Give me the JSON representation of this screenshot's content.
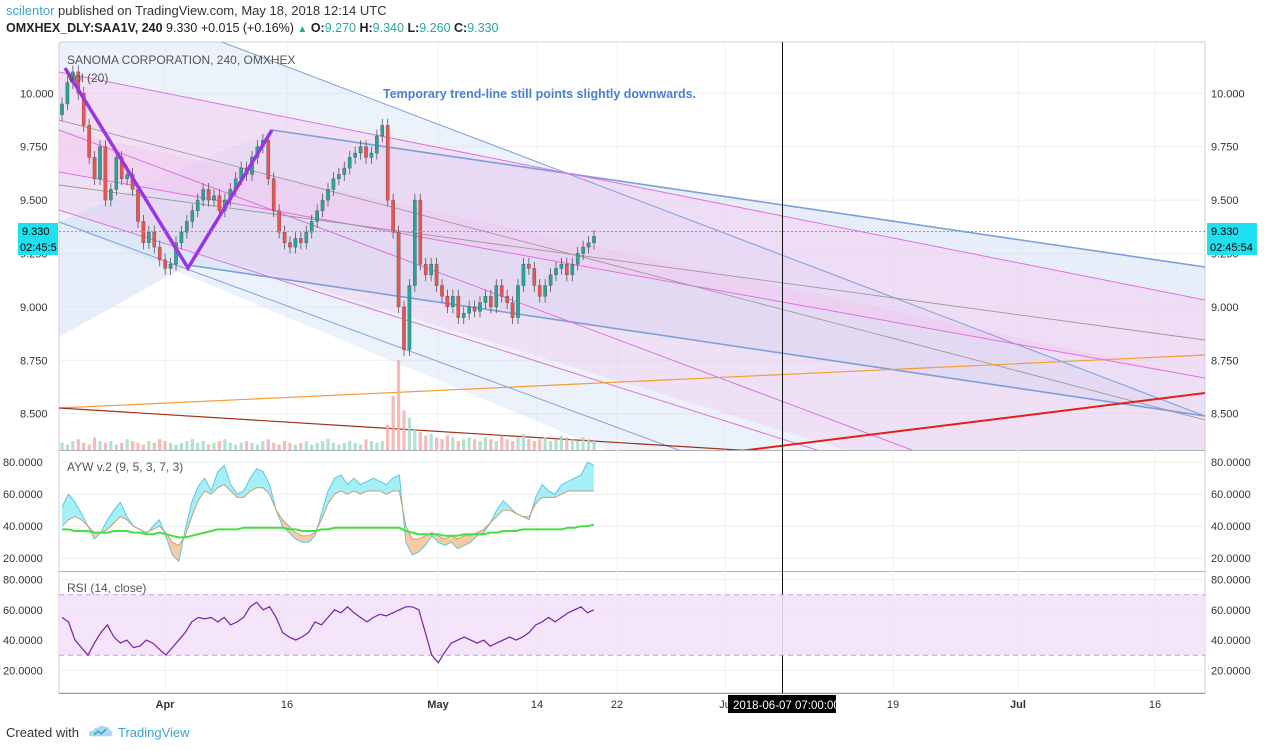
{
  "header": {
    "author": "scilentor",
    "published_text": " published on TradingView.com, May 18, 2018 12:14 UTC",
    "symbol": "OMXHEX_DLY:SAA1V, 240",
    "last": "9.330",
    "change": "+0.015 (+0.16%)",
    "o_label": "O:",
    "o_value": "9.270",
    "h_label": "H:",
    "h_value": "9.340",
    "l_label": "L:",
    "l_value": "9.260",
    "c_label": "C:",
    "c_value": "9.330"
  },
  "main_pane": {
    "title": "SANOMA CORPORATION, 240, OMXHEX",
    "volume_label": "Vol (20)",
    "annotation": "Temporary trend-line still points slightly downwards.",
    "price_badge": "9.330",
    "countdown_left": "02:45:5",
    "countdown_right": "02:45:54",
    "crosshair_date": "2018-06-07 07:00:00"
  },
  "ayw_pane": {
    "label": "AYW v.2 (9, 5, 3, 7, 3)"
  },
  "rsi_pane": {
    "label": "RSI (14, close)"
  },
  "footer": {
    "created_with": "Created with",
    "brand": "TradingView"
  },
  "colors": {
    "accent": "#3ba3d0",
    "up": "#26a69a",
    "down": "#ef5350",
    "pitchfork": "#9c33e5",
    "channel_blue": "#7b9fd9",
    "channel_pink": "#e070e0",
    "orange_line": "#f39c38",
    "red_line": "#e0201c",
    "rsi_line": "#7b1fa2"
  },
  "chart_data": [
    {
      "type": "candlestick",
      "title": "SANOMA CORPORATION, 240, OMXHEX",
      "x_ticks": [
        "Apr",
        "16",
        "May",
        "14",
        "22",
        "Ju",
        "19",
        "Jul",
        "16"
      ],
      "y_ticks": [
        "10.000",
        "9.750",
        "9.500",
        "9.250",
        "9.000",
        "8.750",
        "8.500"
      ],
      "ylim": [
        8.33,
        10.24
      ],
      "last_price": 9.33,
      "closes": [
        9.95,
        10.05,
        10.1,
        10.0,
        9.85,
        9.7,
        9.6,
        9.75,
        9.5,
        9.55,
        9.7,
        9.6,
        9.62,
        9.55,
        9.4,
        9.3,
        9.35,
        9.28,
        9.22,
        9.18,
        9.2,
        9.3,
        9.35,
        9.4,
        9.45,
        9.5,
        9.55,
        9.5,
        9.52,
        9.45,
        9.5,
        9.55,
        9.6,
        9.65,
        9.62,
        9.7,
        9.75,
        9.78,
        9.6,
        9.45,
        9.35,
        9.3,
        9.28,
        9.32,
        9.3,
        9.35,
        9.4,
        9.45,
        9.5,
        9.55,
        9.6,
        9.62,
        9.65,
        9.7,
        9.72,
        9.75,
        9.7,
        9.72,
        9.8,
        9.85,
        9.5,
        9.35,
        9.0,
        8.8,
        9.1,
        9.5,
        9.2,
        9.15,
        9.2,
        9.1,
        9.05,
        9.0,
        9.05,
        8.95,
        8.97,
        9.0,
        8.98,
        9.02,
        9.05,
        9.0,
        9.1,
        9.05,
        9.02,
        8.95,
        9.1,
        9.2,
        9.18,
        9.1,
        9.05,
        9.1,
        9.15,
        9.18,
        9.2,
        9.15,
        9.2,
        9.25,
        9.28,
        9.3,
        9.33
      ],
      "volumes": [
        4,
        3,
        5,
        6,
        4,
        3,
        7,
        5,
        4,
        5,
        3,
        4,
        6,
        5,
        4,
        3,
        5,
        4,
        6,
        5,
        4,
        3,
        4,
        5,
        6,
        4,
        5,
        3,
        4,
        5,
        6,
        4,
        3,
        4,
        5,
        4,
        3,
        5,
        6,
        4,
        3,
        5,
        4,
        3,
        4,
        5,
        3,
        4,
        5,
        6,
        4,
        3,
        4,
        5,
        4,
        3,
        6,
        5,
        4,
        5,
        14,
        30,
        50,
        22,
        18,
        12,
        10,
        8,
        9,
        7,
        6,
        8,
        7,
        5,
        6,
        7,
        6,
        5,
        7,
        6,
        5,
        8,
        6,
        5,
        7,
        9,
        6,
        5,
        6,
        7,
        5,
        6,
        8,
        7,
        6,
        5,
        7,
        6,
        5
      ],
      "indicators": [
        "Vol (20)"
      ]
    },
    {
      "type": "line",
      "title": "AYW v.2 (9, 5, 3, 7, 3)",
      "y_ticks": [
        "80.0000",
        "60.0000",
        "40.0000",
        "20.0000"
      ],
      "ylim": [
        12,
        87
      ],
      "series": [
        {
          "values": [
            52,
            60,
            55,
            48,
            40,
            32,
            36,
            44,
            50,
            55,
            46,
            40,
            38,
            35,
            40,
            44,
            34,
            22,
            18,
            38,
            55,
            65,
            70,
            62,
            74,
            78,
            66,
            60,
            62,
            70,
            76,
            74,
            66,
            50,
            40,
            36,
            32,
            30,
            30,
            34,
            48,
            62,
            70,
            72,
            66,
            70,
            66,
            68,
            70,
            68,
            66,
            70,
            72,
            30,
            22,
            24,
            28,
            34,
            30,
            28,
            30,
            26,
            28,
            30,
            34,
            36,
            42,
            50,
            56,
            52,
            48,
            46,
            44,
            58,
            66,
            62,
            60,
            66,
            68,
            70,
            72,
            80,
            78
          ]
        },
        {
          "values": [
            40,
            44,
            46,
            44,
            40,
            36,
            36,
            38,
            42,
            46,
            44,
            40,
            38,
            36,
            38,
            40,
            36,
            30,
            28,
            34,
            46,
            56,
            62,
            60,
            64,
            66,
            62,
            58,
            58,
            62,
            64,
            64,
            60,
            50,
            44,
            40,
            36,
            34,
            34,
            36,
            44,
            54,
            60,
            62,
            60,
            62,
            60,
            62,
            62,
            62,
            60,
            62,
            62,
            40,
            32,
            32,
            34,
            36,
            34,
            32,
            34,
            32,
            34,
            34,
            36,
            38,
            42,
            46,
            50,
            50,
            48,
            46,
            46,
            54,
            58,
            58,
            58,
            60,
            62,
            62,
            62,
            62,
            62
          ]
        },
        {
          "values": [
            38,
            38,
            37,
            37,
            37,
            36,
            36,
            36,
            37,
            37,
            37,
            36,
            36,
            35,
            35,
            36,
            35,
            34,
            33,
            33,
            34,
            35,
            36,
            37,
            38,
            38,
            38,
            38,
            39,
            39,
            39,
            39,
            39,
            39,
            39,
            38,
            38,
            37,
            37,
            37,
            38,
            38,
            39,
            39,
            39,
            39,
            39,
            39,
            39,
            39,
            39,
            39,
            39,
            37,
            36,
            35,
            35,
            35,
            35,
            34,
            34,
            34,
            35,
            35,
            35,
            35,
            36,
            36,
            37,
            37,
            37,
            38,
            38,
            38,
            38,
            38,
            38,
            38,
            39,
            39,
            40,
            40,
            41
          ]
        }
      ]
    },
    {
      "type": "line",
      "title": "RSI (14, close)",
      "y_ticks": [
        "80.0000",
        "60.0000",
        "40.0000",
        "20.0000"
      ],
      "ylim": [
        5,
        85
      ],
      "bands": [
        30,
        70
      ],
      "series": [
        {
          "values": [
            55,
            52,
            40,
            35,
            30,
            38,
            45,
            50,
            42,
            38,
            40,
            35,
            36,
            40,
            38,
            34,
            30,
            35,
            40,
            45,
            52,
            55,
            54,
            55,
            52,
            55,
            50,
            52,
            55,
            62,
            65,
            60,
            62,
            55,
            45,
            42,
            40,
            42,
            45,
            52,
            50,
            55,
            60,
            58,
            62,
            58,
            55,
            52,
            55,
            57,
            56,
            58,
            60,
            62,
            62,
            60,
            45,
            30,
            25,
            32,
            38,
            40,
            42,
            40,
            38,
            40,
            36,
            38,
            40,
            42,
            40,
            42,
            45,
            50,
            52,
            55,
            52,
            55,
            58,
            60,
            62,
            58,
            60
          ]
        }
      ]
    }
  ]
}
